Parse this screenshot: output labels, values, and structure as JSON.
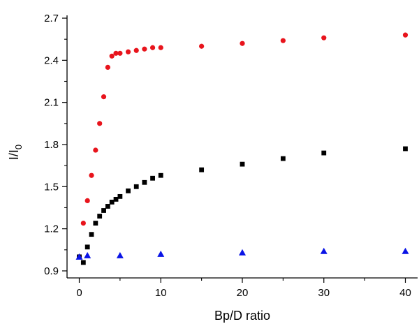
{
  "chart_data": {
    "type": "scatter",
    "xlabel": "Bp/D ratio",
    "ylabel_main": "I/I",
    "ylabel_sub": "0",
    "xlim": [
      -1.5,
      41.5
    ],
    "ylim": [
      0.85,
      2.72
    ],
    "xticks": [
      0,
      10,
      20,
      30,
      40
    ],
    "yticks": [
      0.9,
      1.2,
      1.5,
      1.8,
      2.1,
      2.4,
      2.7
    ],
    "xtick_labels": [
      "0",
      "10",
      "20",
      "30",
      "40"
    ],
    "ytick_labels": [
      "0.9",
      "1.2",
      "1.5",
      "1.8",
      "2.1",
      "2.4",
      "2.7"
    ],
    "grid": false,
    "legend": "none",
    "series": [
      {
        "marker": "circle",
        "color": "#e8141c",
        "x": [
          0,
          0.5,
          1,
          1.5,
          2,
          2.5,
          3,
          3.5,
          4,
          4.5,
          5,
          6,
          7,
          8,
          9,
          10,
          15,
          20,
          25,
          30,
          40
        ],
        "y": [
          1.0,
          1.24,
          1.4,
          1.58,
          1.76,
          1.95,
          2.14,
          2.35,
          2.43,
          2.45,
          2.45,
          2.46,
          2.47,
          2.48,
          2.49,
          2.49,
          2.5,
          2.52,
          2.54,
          2.56,
          2.58
        ]
      },
      {
        "marker": "square",
        "color": "#000000",
        "x": [
          0,
          0.5,
          1,
          1.5,
          2,
          2.5,
          3,
          3.5,
          4,
          4.5,
          5,
          6,
          7,
          8,
          9,
          10,
          15,
          20,
          25,
          30,
          40
        ],
        "y": [
          1.0,
          0.96,
          1.07,
          1.16,
          1.24,
          1.29,
          1.33,
          1.36,
          1.39,
          1.41,
          1.43,
          1.47,
          1.5,
          1.53,
          1.56,
          1.58,
          1.62,
          1.66,
          1.7,
          1.74,
          1.77
        ]
      },
      {
        "marker": "triangle",
        "color": "#0a14e6",
        "x": [
          0,
          1,
          5,
          10,
          20,
          30,
          40
        ],
        "y": [
          1.0,
          1.01,
          1.01,
          1.02,
          1.03,
          1.04,
          1.04
        ]
      }
    ]
  }
}
